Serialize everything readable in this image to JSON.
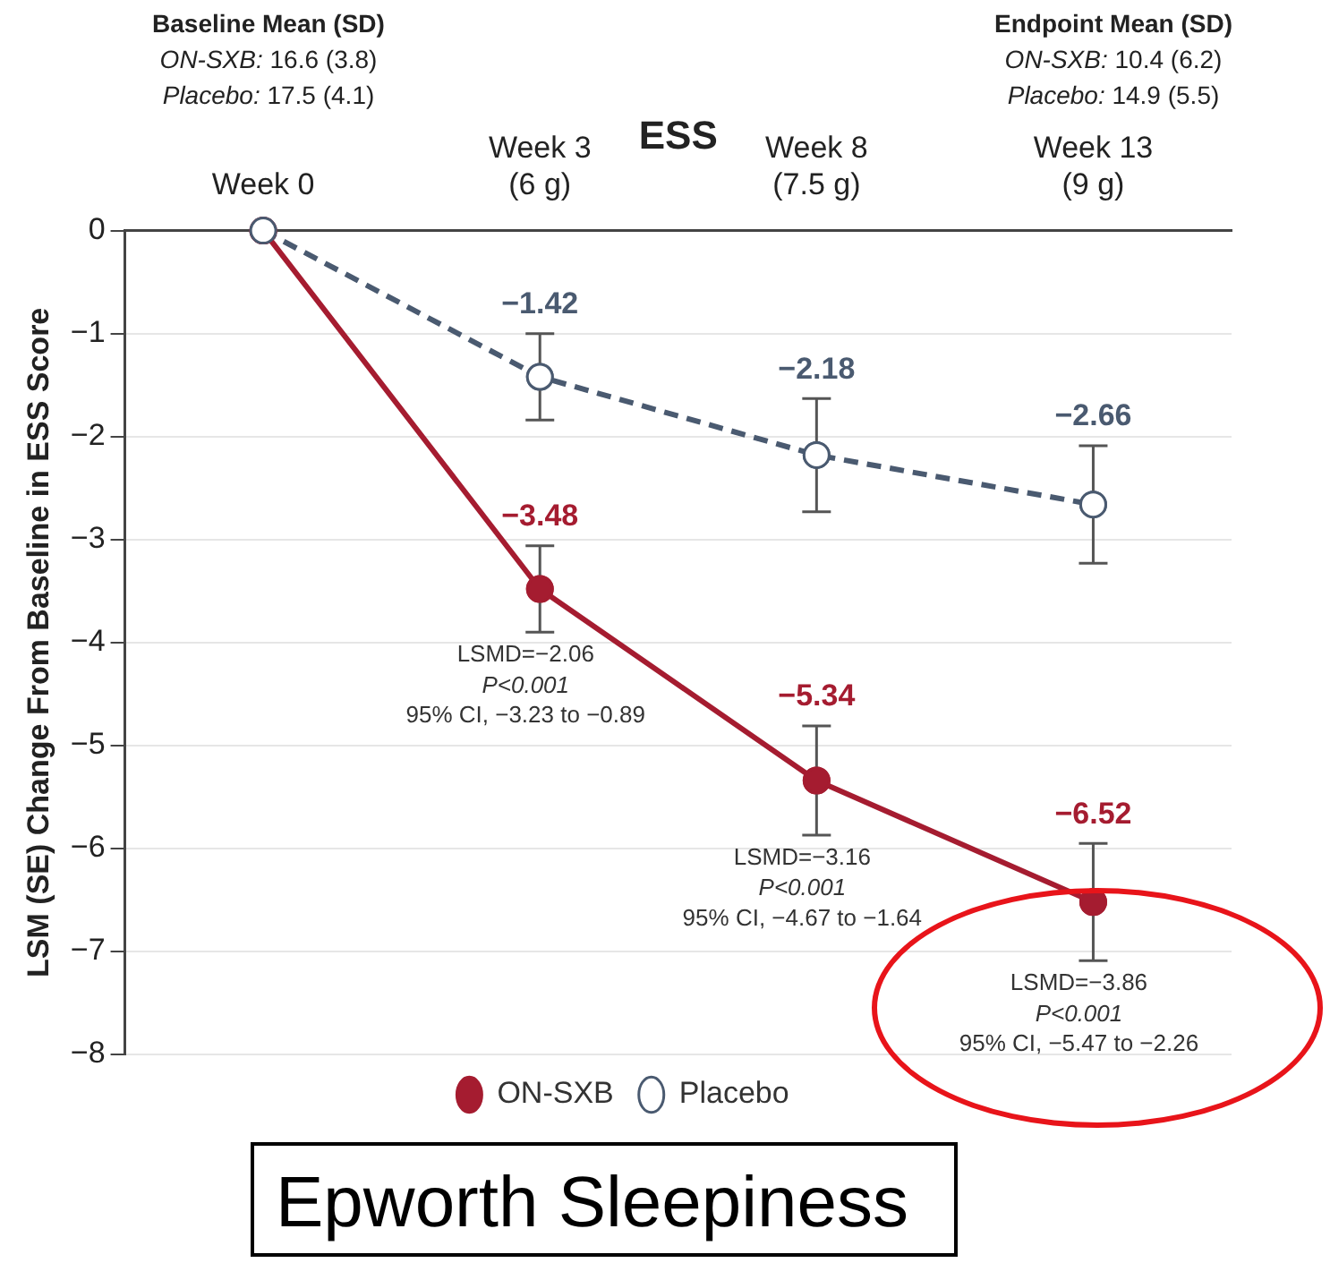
{
  "chart_data": {
    "type": "line",
    "title": "ESS",
    "ylabel": "LSM (SE) Change From Baseline in ESS Score",
    "categories": [
      "Week 0",
      "Week 3\n(6 g)",
      "Week 8\n(7.5 g)",
      "Week 13\n(9 g)"
    ],
    "series": [
      {
        "name": "ON-SXB",
        "color": "#a51c30",
        "values": [
          0,
          -3.48,
          -5.34,
          -6.52
        ],
        "errors": [
          null,
          0.42,
          0.53,
          0.57
        ],
        "value_labels": [
          null,
          "−3.48",
          "−5.34",
          "−6.52"
        ],
        "line_style": "solid"
      },
      {
        "name": "Placebo",
        "color": "#4a5a70",
        "values": [
          0,
          -1.42,
          -2.18,
          -2.66
        ],
        "errors": [
          null,
          0.42,
          0.55,
          0.57
        ],
        "value_labels": [
          null,
          "−1.42",
          "−2.18",
          "−2.66"
        ],
        "line_style": "dashed"
      }
    ],
    "ylim": [
      -8,
      0
    ],
    "yticks": [
      0,
      -1,
      -2,
      -3,
      -4,
      -5,
      -6,
      -7,
      -8
    ],
    "grid": "y",
    "legend": "bottom",
    "marker": "circle",
    "annotations": [
      "Baseline Mean (SD)\nON-SXB: 16.6 (3.8)\nPlacebo: 17.5 (4.1)",
      "Endpoint Mean (SD)\nON-SXB: 10.4 (6.2)\nPlacebo: 14.9 (5.5)",
      {
        "text": "LSMD=−2.06\nP<0.001\n95% CI, −3.23 to −0.89",
        "x": "Week 3\n(6 g)",
        "y": -3.48
      },
      {
        "text": "LSMD=−3.16\nP<0.001\n95% CI, −4.67 to −1.64",
        "x": "Week 8\n(7.5 g)",
        "y": -5.34
      },
      {
        "text": "LSMD=−3.86\nP<0.001\n95% CI, −5.47 to −2.26",
        "x": "Week 13\n(9 g)",
        "y": -6.52
      },
      "Epworth Sleepiness"
    ]
  }
}
